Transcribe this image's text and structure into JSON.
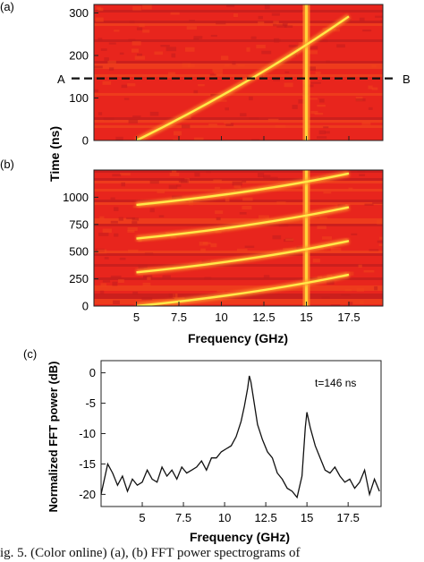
{
  "chart_data": [
    {
      "panel_label": "(a)",
      "type": "heatmap",
      "xlabel": "",
      "ylabel": "",
      "xlim": [
        2.5,
        19.5
      ],
      "ylim": [
        0,
        320
      ],
      "yticks": [
        0,
        100,
        200,
        300
      ],
      "xticks": [
        5,
        7.5,
        10,
        12.5,
        15,
        17.5
      ],
      "colormap": [
        "#8a1d1d",
        "#c21d1d",
        "#e8261e",
        "#f0431c",
        "#ffe23a"
      ],
      "chirp": {
        "frequency_start_ghz": 5,
        "frequency_end_ghz": 17.5,
        "time_start_ns": 0,
        "time_end_ns": 292
      },
      "constant_line_ghz": 15.0,
      "cut_line": {
        "time_ns": 146,
        "label_left": "A",
        "label_right": "B"
      }
    },
    {
      "panel_label": "(b)",
      "type": "heatmap",
      "xlabel": "Frequency (GHz)",
      "ylabel": "Time (ns)",
      "xlim": [
        2.5,
        19.5
      ],
      "ylim": [
        0,
        1250
      ],
      "yticks": [
        0,
        250,
        500,
        750,
        1000
      ],
      "xticks": [
        5,
        7.5,
        10,
        12.5,
        15,
        17.5
      ],
      "colormap": [
        "#8a1d1d",
        "#c21d1d",
        "#e8261e",
        "#f0431c",
        "#ffe23a"
      ],
      "chirp_period_ns": 310,
      "chirps": [
        {
          "time_start_ns": 0,
          "frequency_start_ghz": 5.0,
          "frequency_end_ghz": 17.5
        },
        {
          "time_start_ns": 310,
          "frequency_start_ghz": 5.0,
          "frequency_end_ghz": 17.5
        },
        {
          "time_start_ns": 620,
          "frequency_start_ghz": 5.0,
          "frequency_end_ghz": 17.5
        },
        {
          "time_start_ns": 930,
          "frequency_start_ghz": 5.0,
          "frequency_end_ghz": 17.5
        }
      ],
      "constant_line_ghz": 15.0
    },
    {
      "panel_label": "(c)",
      "type": "line",
      "xlabel": "Frequency (GHz)",
      "ylabel": "Normalized FFT power (dB)",
      "xlim": [
        2.5,
        19.5
      ],
      "ylim": [
        -22,
        2
      ],
      "xticks": [
        5,
        7.5,
        10,
        12.5,
        15,
        17.5
      ],
      "yticks": [
        0,
        -5,
        -10,
        -15,
        -20
      ],
      "annotation": "t=146 ns",
      "x": [
        2.5,
        2.9,
        3.2,
        3.5,
        3.8,
        4.1,
        4.4,
        4.7,
        5.0,
        5.3,
        5.6,
        5.9,
        6.2,
        6.5,
        6.8,
        7.1,
        7.4,
        7.7,
        8.0,
        8.3,
        8.6,
        8.9,
        9.2,
        9.5,
        9.8,
        10.1,
        10.4,
        10.7,
        11.0,
        11.2,
        11.4,
        11.5,
        11.6,
        11.8,
        12.0,
        12.3,
        12.6,
        12.9,
        13.2,
        13.5,
        13.8,
        14.1,
        14.4,
        14.7,
        14.9,
        15.0,
        15.2,
        15.5,
        15.8,
        16.1,
        16.4,
        16.7,
        17.0,
        17.3,
        17.6,
        17.9,
        18.2,
        18.5,
        18.8,
        19.1,
        19.4
      ],
      "y": [
        -20,
        -15,
        -16.5,
        -18.5,
        -17,
        -19.5,
        -17.5,
        -18.5,
        -18,
        -16,
        -17.5,
        -18,
        -15.5,
        -17,
        -16,
        -17.5,
        -15.5,
        -16.5,
        -16,
        -15.5,
        -14.5,
        -16,
        -14,
        -14,
        -13,
        -12.5,
        -12,
        -10.5,
        -8,
        -5.5,
        -2.5,
        -0.5,
        -1.5,
        -5,
        -8.5,
        -11,
        -13,
        -14,
        -16.5,
        -17.5,
        -19,
        -19.5,
        -20.5,
        -17,
        -9,
        -6.5,
        -9,
        -12,
        -14,
        -16,
        -16.5,
        -15.5,
        -17,
        -18,
        -17.5,
        -19,
        -18,
        -16,
        -20,
        -17.5,
        -19.5
      ]
    }
  ],
  "caption": "ig. 5. (Color online) (a), (b) FFT power spectrograms of"
}
